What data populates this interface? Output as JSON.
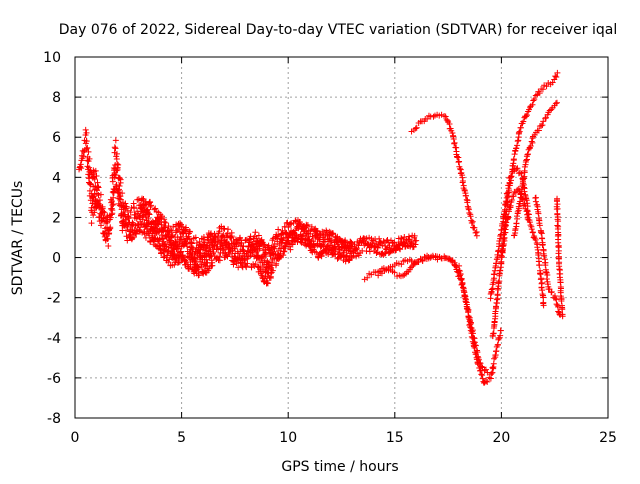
{
  "chart_data": {
    "type": "scatter",
    "title": "Day 076 of 2022, Sidereal Day-to-day VTEC variation (SDTVAR) for receiver iqal",
    "xlabel": "GPS time / hours",
    "ylabel": "SDTVAR / TECUs",
    "xlim": [
      0,
      25
    ],
    "ylim": [
      -8,
      10
    ],
    "xticks": [
      0,
      5,
      10,
      15,
      20,
      25
    ],
    "yticks": [
      -8,
      -6,
      -4,
      -2,
      0,
      2,
      4,
      6,
      8,
      10
    ],
    "grid": true,
    "marker": "+",
    "color": "#ff0000",
    "series": [
      {
        "name": "SDTVAR",
        "trend_x": [
          0.2,
          0.5,
          0.8,
          1.0,
          1.3,
          1.6,
          1.9,
          2.2,
          2.5,
          3.0,
          3.5,
          4.0,
          4.5,
          5.0,
          5.5,
          6.0,
          6.5,
          7.0,
          7.5,
          8.0,
          8.5,
          9.0,
          9.5,
          10.0,
          10.5,
          11.0,
          11.5,
          12.0,
          12.5,
          13.0,
          13.5,
          14.0,
          14.5,
          15.0,
          15.5,
          16.0
        ],
        "trend_y": [
          4.2,
          6.0,
          2.8,
          3.5,
          1.8,
          1.2,
          4.8,
          2.4,
          1.5,
          2.2,
          1.8,
          1.2,
          0.5,
          0.8,
          0.2,
          0.0,
          0.5,
          0.8,
          0.3,
          0.2,
          0.4,
          -0.5,
          0.6,
          1.0,
          1.4,
          1.0,
          0.6,
          0.8,
          0.3,
          0.4,
          0.6,
          0.6,
          0.5,
          0.6,
          0.8,
          0.8
        ],
        "spread": [
          0.2,
          0.5,
          1.5,
          1.0,
          0.8,
          0.7,
          1.2,
          1.0,
          0.8,
          0.9,
          1.0,
          1.0,
          1.0,
          1.0,
          1.0,
          1.0,
          0.9,
          0.8,
          0.8,
          0.7,
          0.9,
          1.0,
          0.8,
          0.8,
          0.6,
          0.6,
          0.7,
          0.6,
          0.6,
          0.5,
          0.4,
          0.4,
          0.4,
          0.3,
          0.3,
          0.3
        ],
        "segments": [
          {
            "x": [
              15.8,
              16.2,
              16.6,
              17.0,
              17.4,
              17.7,
              18.0,
              18.3,
              18.6,
              18.9
            ],
            "y": [
              6.3,
              6.7,
              7.0,
              7.2,
              7.0,
              6.2,
              4.8,
              3.2,
              1.8,
              1.0
            ]
          },
          {
            "x": [
              13.6,
              14.0,
              14.5,
              15.0,
              15.5,
              16.0,
              16.5,
              17.0,
              17.5,
              18.0,
              18.3,
              18.6,
              18.9,
              19.2,
              19.5,
              19.8,
              20.0
            ],
            "y": [
              -1.0,
              -0.8,
              -0.6,
              -0.4,
              -0.2,
              -0.2,
              0.0,
              0.0,
              0.0,
              -0.5,
              -2.0,
              -3.8,
              -5.3,
              -6.3,
              -6.0,
              -4.5,
              -3.5
            ]
          },
          {
            "x": [
              14.2,
              14.6,
              15.0,
              15.4,
              15.8,
              16.2,
              16.6,
              17.0,
              17.4,
              17.8,
              18.2,
              18.6,
              19.0,
              19.4
            ],
            "y": [
              -0.8,
              -0.6,
              -0.8,
              -1.0,
              -0.4,
              -0.1,
              0.0,
              0.0,
              0.0,
              -0.2,
              -1.5,
              -3.5,
              -5.3,
              -5.8
            ]
          },
          {
            "x": [
              19.5,
              19.8,
              20.1,
              20.4,
              20.7,
              21.0,
              21.3
            ],
            "y": [
              -2.0,
              0.0,
              2.0,
              4.0,
              4.5,
              4.0,
              2.0
            ]
          },
          {
            "x": [
              19.6,
              19.9,
              20.2,
              20.5,
              20.8,
              21.1,
              21.4,
              21.7,
              22.0
            ],
            "y": [
              -4.0,
              -1.0,
              1.5,
              3.0,
              3.5,
              2.5,
              1.5,
              0.5,
              -2.5
            ]
          },
          {
            "x": [
              20.0,
              20.3,
              20.6,
              20.9,
              21.2,
              21.5,
              21.8,
              22.1,
              22.4,
              22.7
            ],
            "y": [
              0.0,
              3.0,
              5.0,
              6.5,
              7.2,
              7.8,
              8.3,
              8.6,
              8.8,
              9.2
            ]
          },
          {
            "x": [
              20.6,
              20.9,
              21.2,
              21.5,
              21.8,
              22.1,
              22.4,
              22.7
            ],
            "y": [
              1.0,
              3.0,
              5.0,
              6.0,
              6.5,
              7.0,
              7.5,
              7.8
            ]
          },
          {
            "x": [
              21.6,
              21.9,
              22.2,
              22.5,
              22.8
            ],
            "y": [
              3.0,
              1.0,
              -1.5,
              -2.0,
              -3.0
            ]
          },
          {
            "x": [
              22.6,
              22.7,
              22.8,
              22.9
            ],
            "y": [
              3.0,
              0.0,
              -2.0,
              -3.0
            ]
          }
        ]
      }
    ]
  }
}
